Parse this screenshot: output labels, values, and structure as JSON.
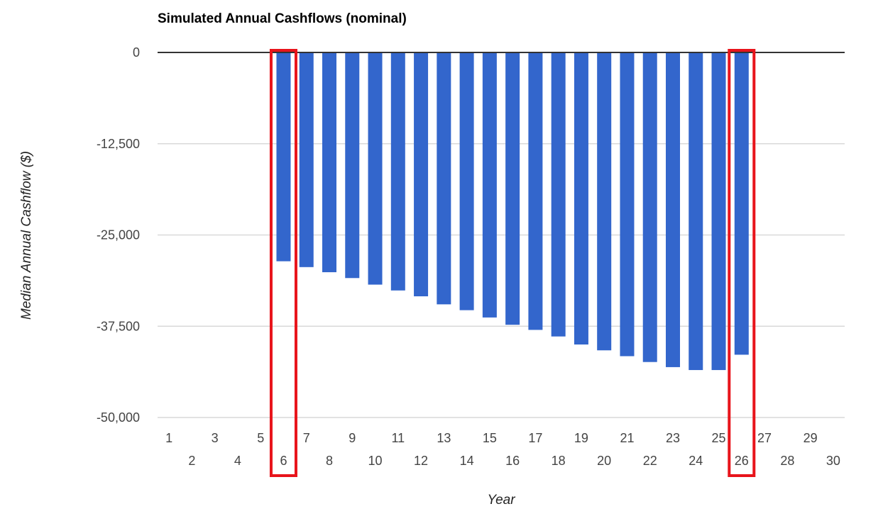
{
  "chart_data": {
    "type": "bar",
    "title": "Simulated Annual Cashflows (nominal)",
    "xlabel": "Year",
    "ylabel": "Median Annual Cashflow ($)",
    "categories": [
      "1",
      "2",
      "3",
      "4",
      "5",
      "6",
      "7",
      "8",
      "9",
      "10",
      "11",
      "12",
      "13",
      "14",
      "15",
      "16",
      "17",
      "18",
      "19",
      "20",
      "21",
      "22",
      "23",
      "24",
      "25",
      "26",
      "27",
      "28",
      "29",
      "30"
    ],
    "values": [
      0,
      0,
      0,
      0,
      0,
      -28600,
      -29400,
      -30100,
      -30900,
      -31800,
      -32600,
      -33400,
      -34500,
      -35300,
      -36300,
      -37300,
      -38000,
      -38900,
      -40000,
      -40800,
      -41600,
      -42400,
      -43100,
      -43500,
      -43500,
      -41400,
      0,
      0,
      0,
      0
    ],
    "ylim": [
      -50000,
      0
    ],
    "yticks": [
      0,
      -12500,
      -25000,
      -37500,
      -50000
    ],
    "ytick_labels": [
      "0",
      "-12,500",
      "-25,000",
      "-37,500",
      "-50,000"
    ],
    "grid": true,
    "bar_color": "#3366cc",
    "highlighted_categories": [
      "6",
      "26"
    ],
    "highlight_color": "#e8141b"
  }
}
